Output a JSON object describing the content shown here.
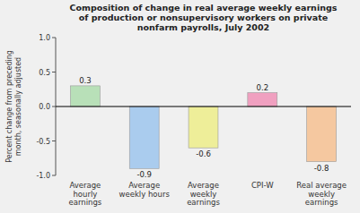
{
  "chart_data": {
    "type": "bar",
    "title": "Composition of change in real average weekly earnings\nof production or nonsupervisory workers on private\nnonfarm payrolls, July 2002",
    "ylabel": "Percent change from preceding\nmonth, seasonally adjusted",
    "categories": [
      "Average\nhourly\nearnings",
      "Average\nweekly hours",
      "Average\nweekly\nearnings",
      "CPI-W",
      "Real average\nweekly\nearnings"
    ],
    "values": [
      0.3,
      -0.9,
      -0.6,
      0.2,
      -0.8
    ],
    "colors": [
      "#b8e0b8",
      "#aaccee",
      "#eeee99",
      "#f0a0c0",
      "#f5c8a0"
    ],
    "ylim": [
      -1,
      1
    ],
    "yticks": [
      {
        "value": -1,
        "label": "-1.0"
      },
      -0.5,
      {
        "value": 0,
        "label": "0.0"
      },
      0.5,
      {
        "value": 1,
        "label": "1.0"
      }
    ],
    "grid": false,
    "data_labels": true
  }
}
